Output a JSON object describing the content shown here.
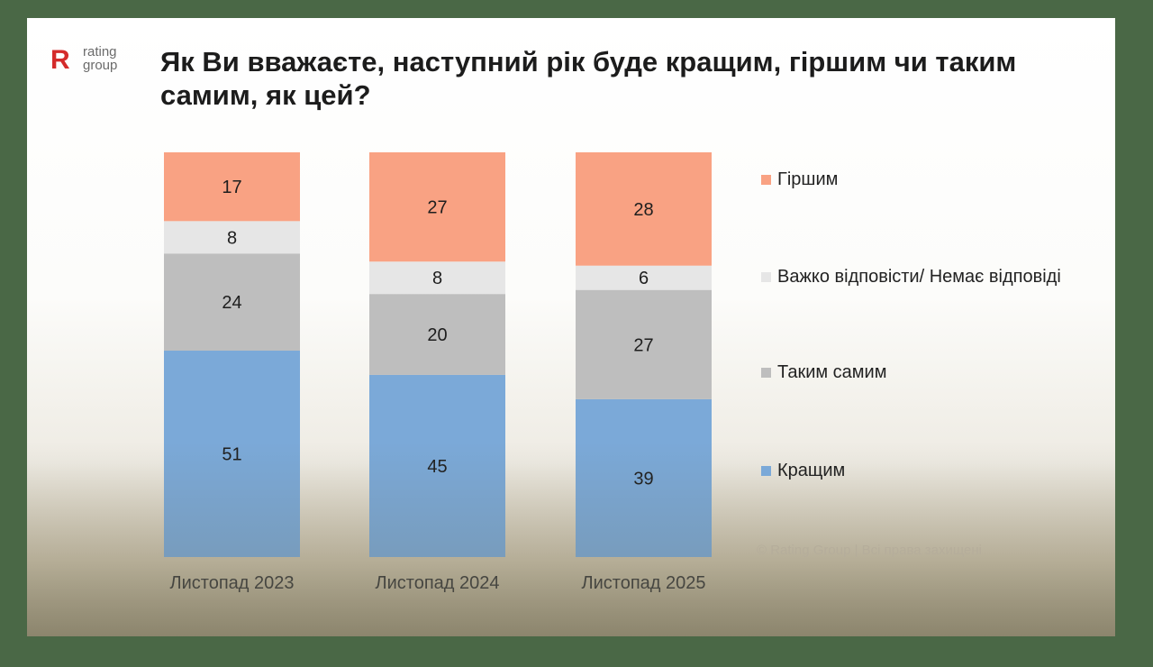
{
  "logo": {
    "mark": "R",
    "text_line1": "rating",
    "text_line2": "group"
  },
  "title": "Як Ви вважаєте, наступний рік буде кращим, гіршим чи таким самим, як цей?",
  "footer": "© Rating Group | Всі права захищені",
  "colors": {
    "worse": "#f9a283",
    "hard": "#e6e6e6",
    "same": "#bebebe",
    "better": "#7ba9d8"
  },
  "chart_data": {
    "type": "bar",
    "stacked": true,
    "title": "Як Ви вважаєте, наступний рік буде кращим, гіршим чи таким самим, як цей?",
    "categories": [
      "Листопад 2023",
      "Листопад 2024",
      "Листопад 2025"
    ],
    "series": [
      {
        "key": "better",
        "name": "Кращим",
        "values": [
          51,
          45,
          39
        ]
      },
      {
        "key": "same",
        "name": "Таким самим",
        "values": [
          24,
          20,
          27
        ]
      },
      {
        "key": "hard",
        "name": "Важко відповісти/ Немає відповіді",
        "values": [
          8,
          8,
          6
        ]
      },
      {
        "key": "worse",
        "name": "Гіршим",
        "values": [
          17,
          27,
          28
        ]
      }
    ],
    "ylim": [
      0,
      100
    ],
    "legend_order": [
      "worse",
      "hard",
      "same",
      "better"
    ],
    "legend_position": "right",
    "xlabel": "",
    "ylabel": ""
  }
}
